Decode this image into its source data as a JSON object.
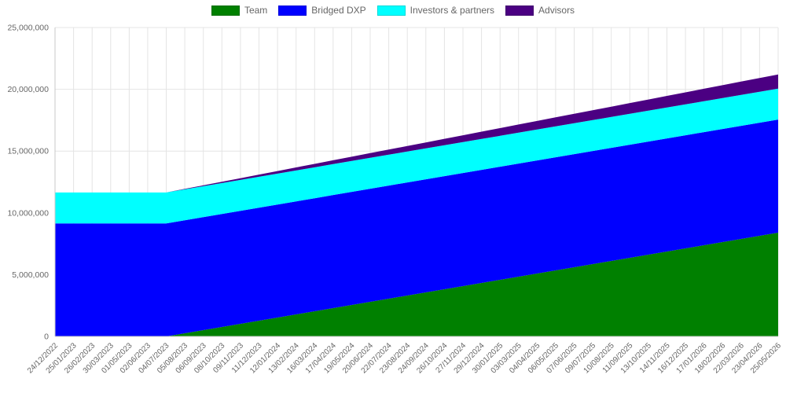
{
  "page": {
    "background": "#ffffff"
  },
  "chart_data": {
    "type": "area",
    "stacked": true,
    "title": "",
    "xlabel": "",
    "ylabel": "",
    "ylim": [
      0,
      25000000
    ],
    "grid": true,
    "legend_position": "top",
    "colors": {
      "grid": "#e4e4e4",
      "axis": "#c8c8c8",
      "tick_text": "#666666"
    },
    "y_ticks": [
      0,
      5000000,
      10000000,
      15000000,
      20000000,
      25000000
    ],
    "y_tick_labels": [
      "0",
      "5,000,000",
      "10,000,000",
      "15,000,000",
      "20,000,000",
      "25,000,000"
    ],
    "categories": [
      "24/12/2022",
      "25/01/2023",
      "26/02/2023",
      "30/03/2023",
      "01/05/2023",
      "02/06/2023",
      "04/07/2023",
      "05/08/2023",
      "06/09/2023",
      "08/10/2023",
      "09/11/2023",
      "11/12/2023",
      "12/01/2024",
      "13/02/2024",
      "16/03/2024",
      "17/04/2024",
      "19/05/2024",
      "20/06/2024",
      "22/07/2024",
      "23/08/2024",
      "24/09/2024",
      "26/10/2024",
      "27/11/2024",
      "29/12/2024",
      "30/01/2025",
      "03/03/2025",
      "04/04/2025",
      "06/05/2025",
      "07/06/2025",
      "09/07/2025",
      "10/08/2025",
      "11/09/2025",
      "13/10/2025",
      "14/11/2025",
      "16/12/2025",
      "17/01/2026",
      "18/02/2026",
      "22/03/2026",
      "23/04/2026",
      "25/05/2026"
    ],
    "series": [
      {
        "name": "Team",
        "color": "#008000",
        "values": [
          0,
          0,
          0,
          0,
          0,
          0,
          0,
          254545,
          509091,
          763636,
          1018182,
          1272727,
          1527273,
          1781818,
          2036364,
          2290909,
          2545455,
          2800000,
          3054545,
          3309091,
          3563636,
          3818182,
          4072727,
          4327273,
          4581818,
          4836364,
          5090909,
          5345455,
          5600000,
          5854545,
          6109091,
          6363636,
          6618182,
          6872727,
          7127273,
          7381818,
          7636364,
          7890909,
          8145455,
          8400000
        ]
      },
      {
        "name": "Bridged DXP",
        "color": "#0000ff",
        "values": [
          9150000,
          9150000,
          9150000,
          9150000,
          9150000,
          9150000,
          9150000,
          9150000,
          9150000,
          9150000,
          9150000,
          9150000,
          9150000,
          9150000,
          9150000,
          9150000,
          9150000,
          9150000,
          9150000,
          9150000,
          9150000,
          9150000,
          9150000,
          9150000,
          9150000,
          9150000,
          9150000,
          9150000,
          9150000,
          9150000,
          9150000,
          9150000,
          9150000,
          9150000,
          9150000,
          9150000,
          9150000,
          9150000,
          9150000,
          9150000
        ]
      },
      {
        "name": "Investors & partners",
        "color": "#00ffff",
        "values": [
          2500000,
          2500000,
          2500000,
          2500000,
          2500000,
          2500000,
          2500000,
          2500000,
          2500000,
          2500000,
          2500000,
          2500000,
          2500000,
          2500000,
          2500000,
          2500000,
          2500000,
          2500000,
          2500000,
          2500000,
          2500000,
          2500000,
          2500000,
          2500000,
          2500000,
          2500000,
          2500000,
          2500000,
          2500000,
          2500000,
          2500000,
          2500000,
          2500000,
          2500000,
          2500000,
          2500000,
          2500000,
          2500000,
          2500000,
          2500000
        ]
      },
      {
        "name": "Advisors",
        "color": "#4b0082",
        "values": [
          0,
          0,
          0,
          0,
          0,
          0,
          0,
          34848,
          69697,
          104545,
          139394,
          174242,
          209091,
          243939,
          278788,
          313636,
          348485,
          383333,
          418182,
          453030,
          487879,
          522727,
          557576,
          592424,
          627273,
          662121,
          696970,
          731818,
          766667,
          801515,
          836364,
          871212,
          906061,
          940909,
          975758,
          1010606,
          1045455,
          1080303,
          1115152,
          1150000
        ]
      }
    ]
  }
}
